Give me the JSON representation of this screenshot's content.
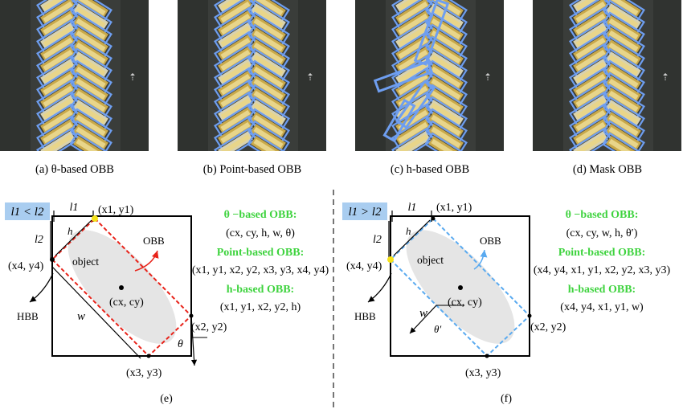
{
  "panels": [
    {
      "id": "a",
      "caption": "(a) θ-based OBB"
    },
    {
      "id": "b",
      "caption": "(b) Point-based OBB"
    },
    {
      "id": "c",
      "caption": "(c) h-based OBB"
    },
    {
      "id": "d",
      "caption": "(d) Mask OBB"
    }
  ],
  "left": {
    "badge": "l1 < l2",
    "l1": "l1",
    "l2": "l2",
    "h": "h",
    "w": "w",
    "theta": "θ",
    "p1": "(x1, y1)",
    "p2": "(x2, y2)",
    "p3": "(x3, y3)",
    "p4": "(x4, y4)",
    "object": "object",
    "center": "(cx, cy)",
    "obb": "OBB",
    "hbb": "HBB",
    "theta_title": "θ −based OBB:",
    "theta_val": "(cx, cy, h, w, θ)",
    "point_title": "Point-based OBB:",
    "point_val": "(x1, y1, x2, y2, x3, y3, x4, y4)",
    "h_title": "h-based OBB:",
    "h_val": "(x1, y1, x2, y2, h)",
    "label": "(e)"
  },
  "right": {
    "badge": "l1 > l2",
    "l1": "l1",
    "l2": "l2",
    "h": "h",
    "w": "w",
    "theta": "θ′",
    "p1": "(x1, y1)",
    "p2": "(x2, y2)",
    "p3": "(x3, y3)",
    "p4": "(x4, y4)",
    "object": "object",
    "center": "(cx, cy)",
    "obb": "OBB",
    "hbb": "HBB",
    "theta_title": "θ −based OBB:",
    "theta_val": "(cx, cy, w, h, θ′)",
    "point_title": "Point-based OBB:",
    "point_val": "(x4, y4, x1, y1, x2, y2, x3, y3)",
    "h_title": "h-based OBB:",
    "h_val": "(x4, y4, x1, y1, w)",
    "label": "(f)"
  },
  "colors": {
    "green": "#3fd33f",
    "red": "#e8231a",
    "blue": "#5aaaf0",
    "badge": "#a9cdf0",
    "box": "#6e9ef0"
  }
}
